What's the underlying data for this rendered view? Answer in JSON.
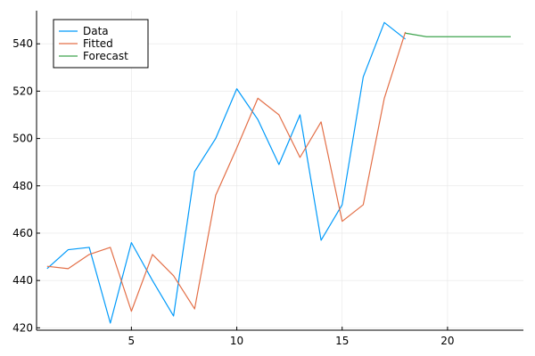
{
  "chart_data": {
    "type": "line",
    "title": "",
    "xlabel": "",
    "ylabel": "",
    "xlim": [
      0.5,
      23.6
    ],
    "ylim": [
      419,
      554
    ],
    "xticks": [
      5,
      10,
      15,
      20
    ],
    "yticks": [
      420,
      440,
      460,
      480,
      500,
      520,
      540
    ],
    "xtick_labels": [
      "5",
      "10",
      "15",
      "20"
    ],
    "ytick_labels": [
      "420",
      "440",
      "460",
      "480",
      "500",
      "520",
      "540"
    ],
    "grid": true,
    "legend_position": "top-left",
    "series": [
      {
        "name": "Data",
        "color": "#009AFA",
        "x": [
          1,
          2,
          3,
          4,
          5,
          6,
          7,
          8,
          9,
          10,
          11,
          12,
          13,
          14,
          15,
          16,
          17,
          18
        ],
        "y": [
          445,
          453,
          454,
          422,
          456,
          440,
          425,
          486,
          500,
          521,
          508,
          489,
          510,
          457,
          472,
          526,
          549,
          542
        ]
      },
      {
        "name": "Fitted",
        "color": "#E36F47",
        "x": [
          1,
          2,
          3,
          4,
          5,
          6,
          7,
          8,
          9,
          10,
          11,
          12,
          13,
          14,
          15,
          16,
          17,
          18
        ],
        "y": [
          446,
          445,
          451,
          454,
          427,
          451,
          442,
          428,
          476,
          496,
          517,
          510,
          492,
          507,
          465,
          472,
          517,
          545
        ]
      },
      {
        "name": "Forecast",
        "color": "#3EA44E",
        "x": [
          18,
          19,
          20,
          21,
          22,
          23
        ],
        "y": [
          544.5,
          543,
          543,
          543,
          543,
          543
        ]
      }
    ]
  }
}
